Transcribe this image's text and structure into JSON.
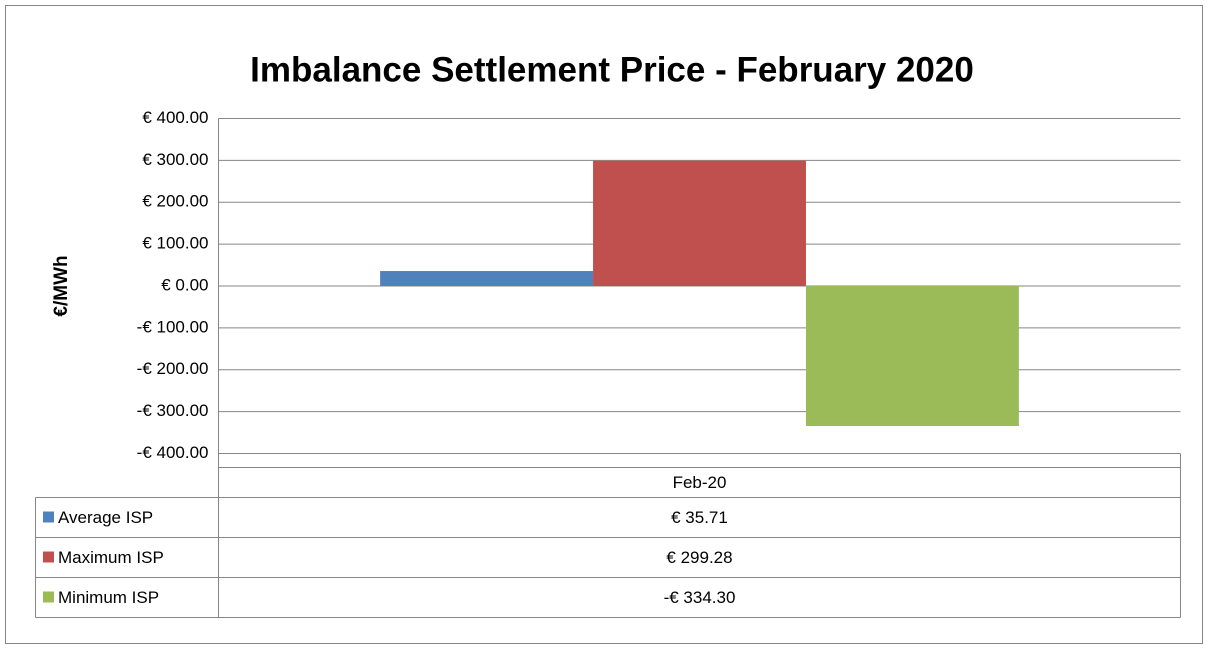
{
  "chart_data": {
    "type": "bar",
    "title": "Imbalance Settlement Price - February 2020",
    "y_label": "€/MWh",
    "categories": [
      "Feb-20"
    ],
    "series": [
      {
        "name": "Average ISP",
        "color": "#4f81bd",
        "values": [
          35.71
        ],
        "value_labels": [
          "€ 35.71"
        ]
      },
      {
        "name": "Maximum ISP",
        "color": "#c0504d",
        "values": [
          299.28
        ],
        "value_labels": [
          "€ 299.28"
        ]
      },
      {
        "name": "Minimum ISP",
        "color": "#9bbb59",
        "values": [
          -334.3
        ],
        "value_labels": [
          "-€ 334.30"
        ]
      }
    ],
    "ylim": [
      -400,
      400
    ],
    "yticks": [
      {
        "value": -400,
        "label": "-€ 400.00"
      },
      {
        "value": -300,
        "label": "-€ 300.00"
      },
      {
        "value": -200,
        "label": "-€ 200.00"
      },
      {
        "value": -100,
        "label": "-€ 100.00"
      },
      {
        "value": 0,
        "label": "€ 0.00"
      },
      {
        "value": 100,
        "label": "€ 100.00"
      },
      {
        "value": 200,
        "label": "€ 200.00"
      },
      {
        "value": 300,
        "label": "€ 300.00"
      },
      {
        "value": 400,
        "label": "€ 400.00"
      }
    ],
    "grid": true,
    "data_table": true
  }
}
